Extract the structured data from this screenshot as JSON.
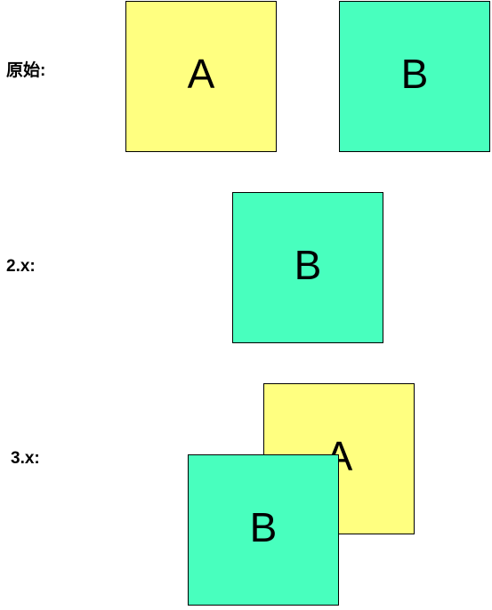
{
  "labels": {
    "original": "原始:",
    "v2": "2.x:",
    "v3": "3.x:"
  },
  "boxes": {
    "original_a": "A",
    "original_b": "B",
    "v2_b": "B",
    "v3_a": "A",
    "v3_b": "B"
  },
  "colors": {
    "box_a": "#ffff80",
    "box_b": "#48ffbe",
    "border": "#000000"
  }
}
